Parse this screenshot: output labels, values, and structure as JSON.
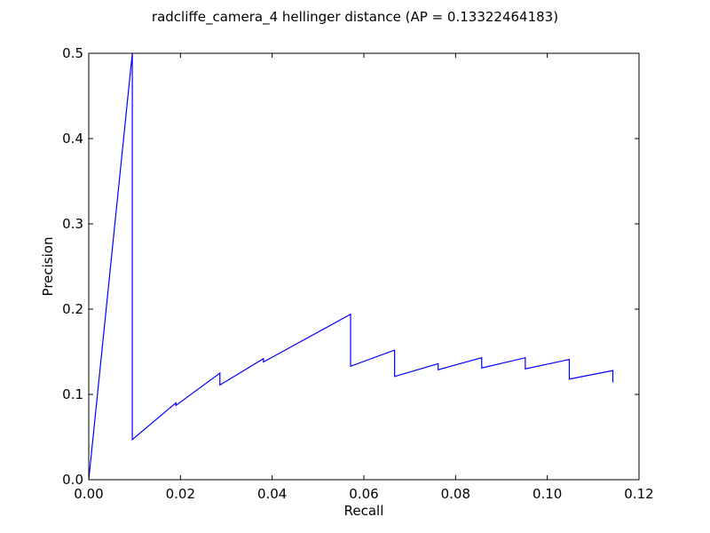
{
  "chart_data": {
    "type": "line",
    "title": "radcliffe_camera_4 hellinger distance  (AP = 0.13322464183)",
    "xlabel": "Recall",
    "ylabel": "Precision",
    "xlim": [
      0.0,
      0.12
    ],
    "ylim": [
      0.0,
      0.5
    ],
    "xticks": [
      "0.00",
      "0.02",
      "0.04",
      "0.06",
      "0.08",
      "0.10",
      "0.12"
    ],
    "yticks": [
      "0.0",
      "0.1",
      "0.2",
      "0.3",
      "0.4",
      "0.5"
    ],
    "grid": false,
    "series": [
      {
        "color": "#0000ff",
        "points": [
          [
            0.0,
            0.0
          ],
          [
            0.0095,
            0.5
          ],
          [
            0.0095,
            0.047
          ],
          [
            0.019,
            0.09
          ],
          [
            0.019,
            0.087
          ],
          [
            0.0286,
            0.125
          ],
          [
            0.0286,
            0.111
          ],
          [
            0.0381,
            0.142
          ],
          [
            0.0381,
            0.138
          ],
          [
            0.0571,
            0.194
          ],
          [
            0.0571,
            0.133
          ],
          [
            0.0667,
            0.152
          ],
          [
            0.0667,
            0.121
          ],
          [
            0.0762,
            0.136
          ],
          [
            0.0762,
            0.129
          ],
          [
            0.0857,
            0.143
          ],
          [
            0.0857,
            0.131
          ],
          [
            0.0952,
            0.143
          ],
          [
            0.0952,
            0.13
          ],
          [
            0.1048,
            0.141
          ],
          [
            0.1048,
            0.118
          ],
          [
            0.1143,
            0.128
          ],
          [
            0.1143,
            0.114
          ]
        ]
      }
    ]
  }
}
